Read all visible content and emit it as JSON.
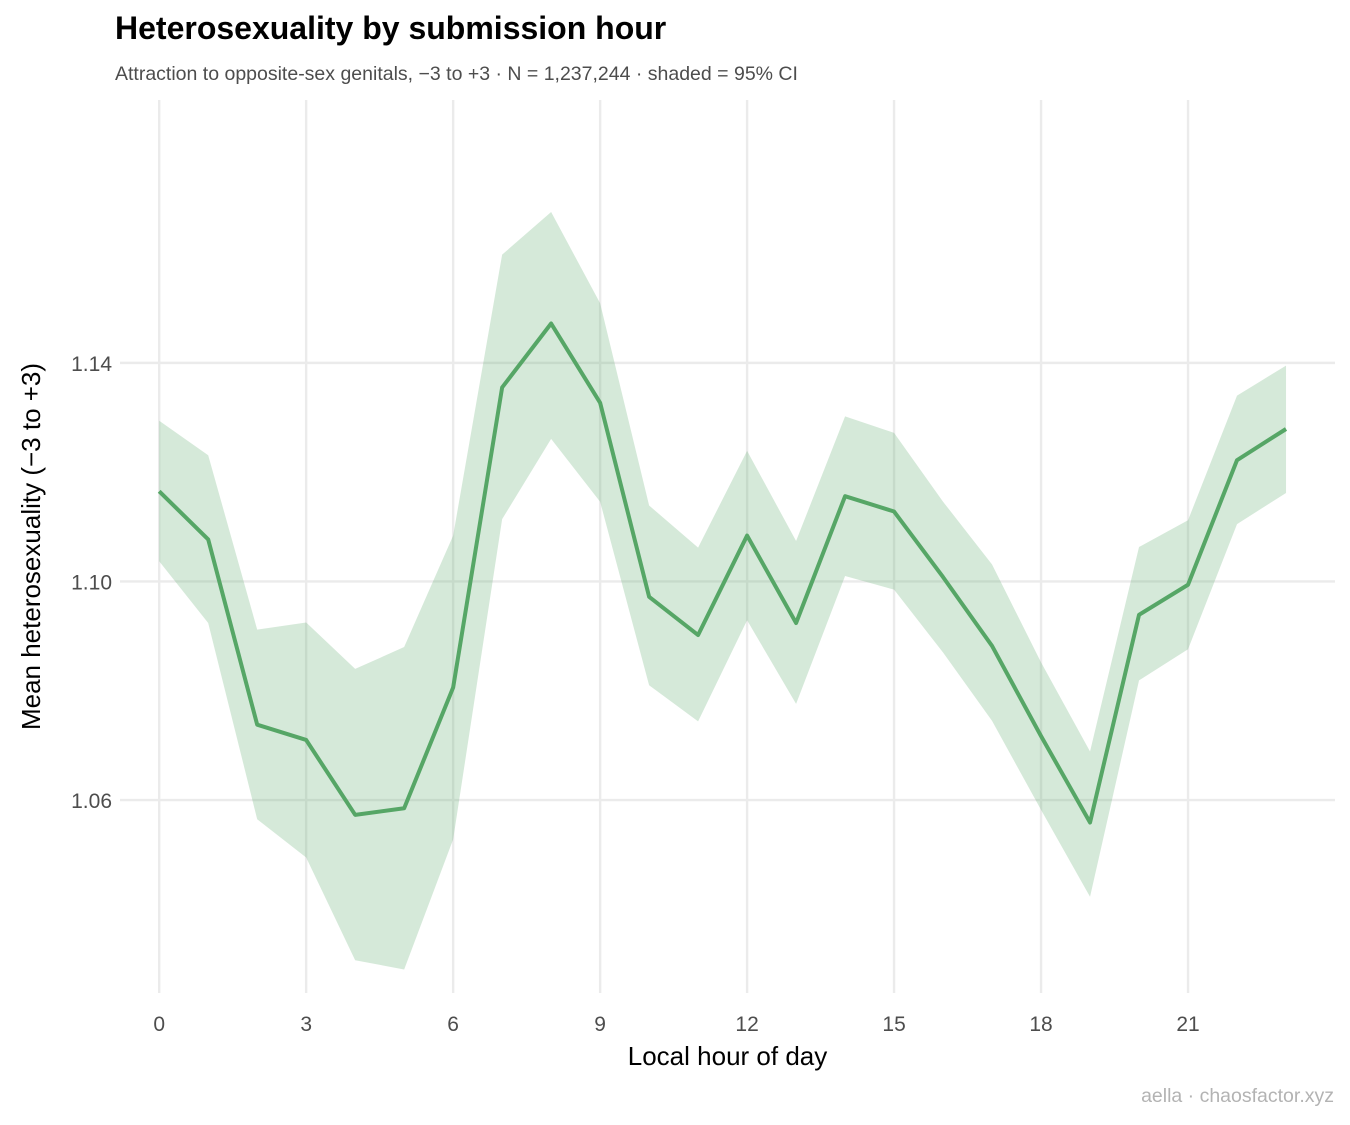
{
  "chart_data": {
    "type": "line",
    "title": "Heterosexuality by submission hour",
    "subtitle": "Attraction to opposite-sex genitals, −3 to +3 · N = 1,237,244 · shaded = 95% CI",
    "caption": "aella · chaosfactor.xyz",
    "xlabel": "Local hour of day",
    "ylabel": "Mean heterosexuality (−3 to +3)",
    "x": [
      0,
      1,
      2,
      3,
      4,
      5,
      6,
      7,
      8,
      9,
      10,
      11,
      12,
      13,
      14,
      15,
      16,
      17,
      18,
      19,
      20,
      21,
      22,
      23
    ],
    "series": [
      {
        "values": [
          1.1165,
          1.1077,
          1.0738,
          1.071,
          1.0573,
          1.0585,
          1.0806,
          1.1355,
          1.1472,
          1.1327,
          1.0972,
          1.0902,
          1.1084,
          1.0924,
          1.1156,
          1.1128,
          1.1008,
          1.0882,
          1.0717,
          1.0559,
          1.0939,
          1.0994,
          1.1222,
          1.1279
        ],
        "ci_low": [
          1.1037,
          1.0924,
          1.0565,
          1.0495,
          1.0307,
          1.029,
          1.0528,
          1.1114,
          1.1261,
          1.1146,
          1.081,
          1.0744,
          1.0929,
          1.0776,
          1.101,
          1.0985,
          1.087,
          1.0745,
          1.0582,
          1.0423,
          1.0819,
          1.0876,
          1.1105,
          1.1162
        ],
        "ci_high": [
          1.1294,
          1.1231,
          1.0912,
          1.0925,
          1.084,
          1.088,
          1.1084,
          1.1598,
          1.1676,
          1.1509,
          1.1139,
          1.1062,
          1.1239,
          1.1074,
          1.1302,
          1.1272,
          1.1146,
          1.1031,
          1.0852,
          1.0689,
          1.1063,
          1.1112,
          1.134,
          1.1395
        ]
      }
    ],
    "xticks": [
      0,
      3,
      6,
      9,
      12,
      15,
      18,
      21
    ],
    "yticks": [
      1.06,
      1.1,
      1.14
    ],
    "ytick_labels": [
      "1.06",
      "1.10",
      "1.14"
    ],
    "xlim": [
      -0.8,
      24.0
    ],
    "ylim": [
      1.0247,
      1.1881
    ],
    "grid": true,
    "legend": "none",
    "colors": {
      "line": "#56a666",
      "ribbon": "#56a666",
      "grid": "#ebebeb",
      "tick_text": "#4d4d4d",
      "caption_text": "#b3b3b3"
    }
  }
}
